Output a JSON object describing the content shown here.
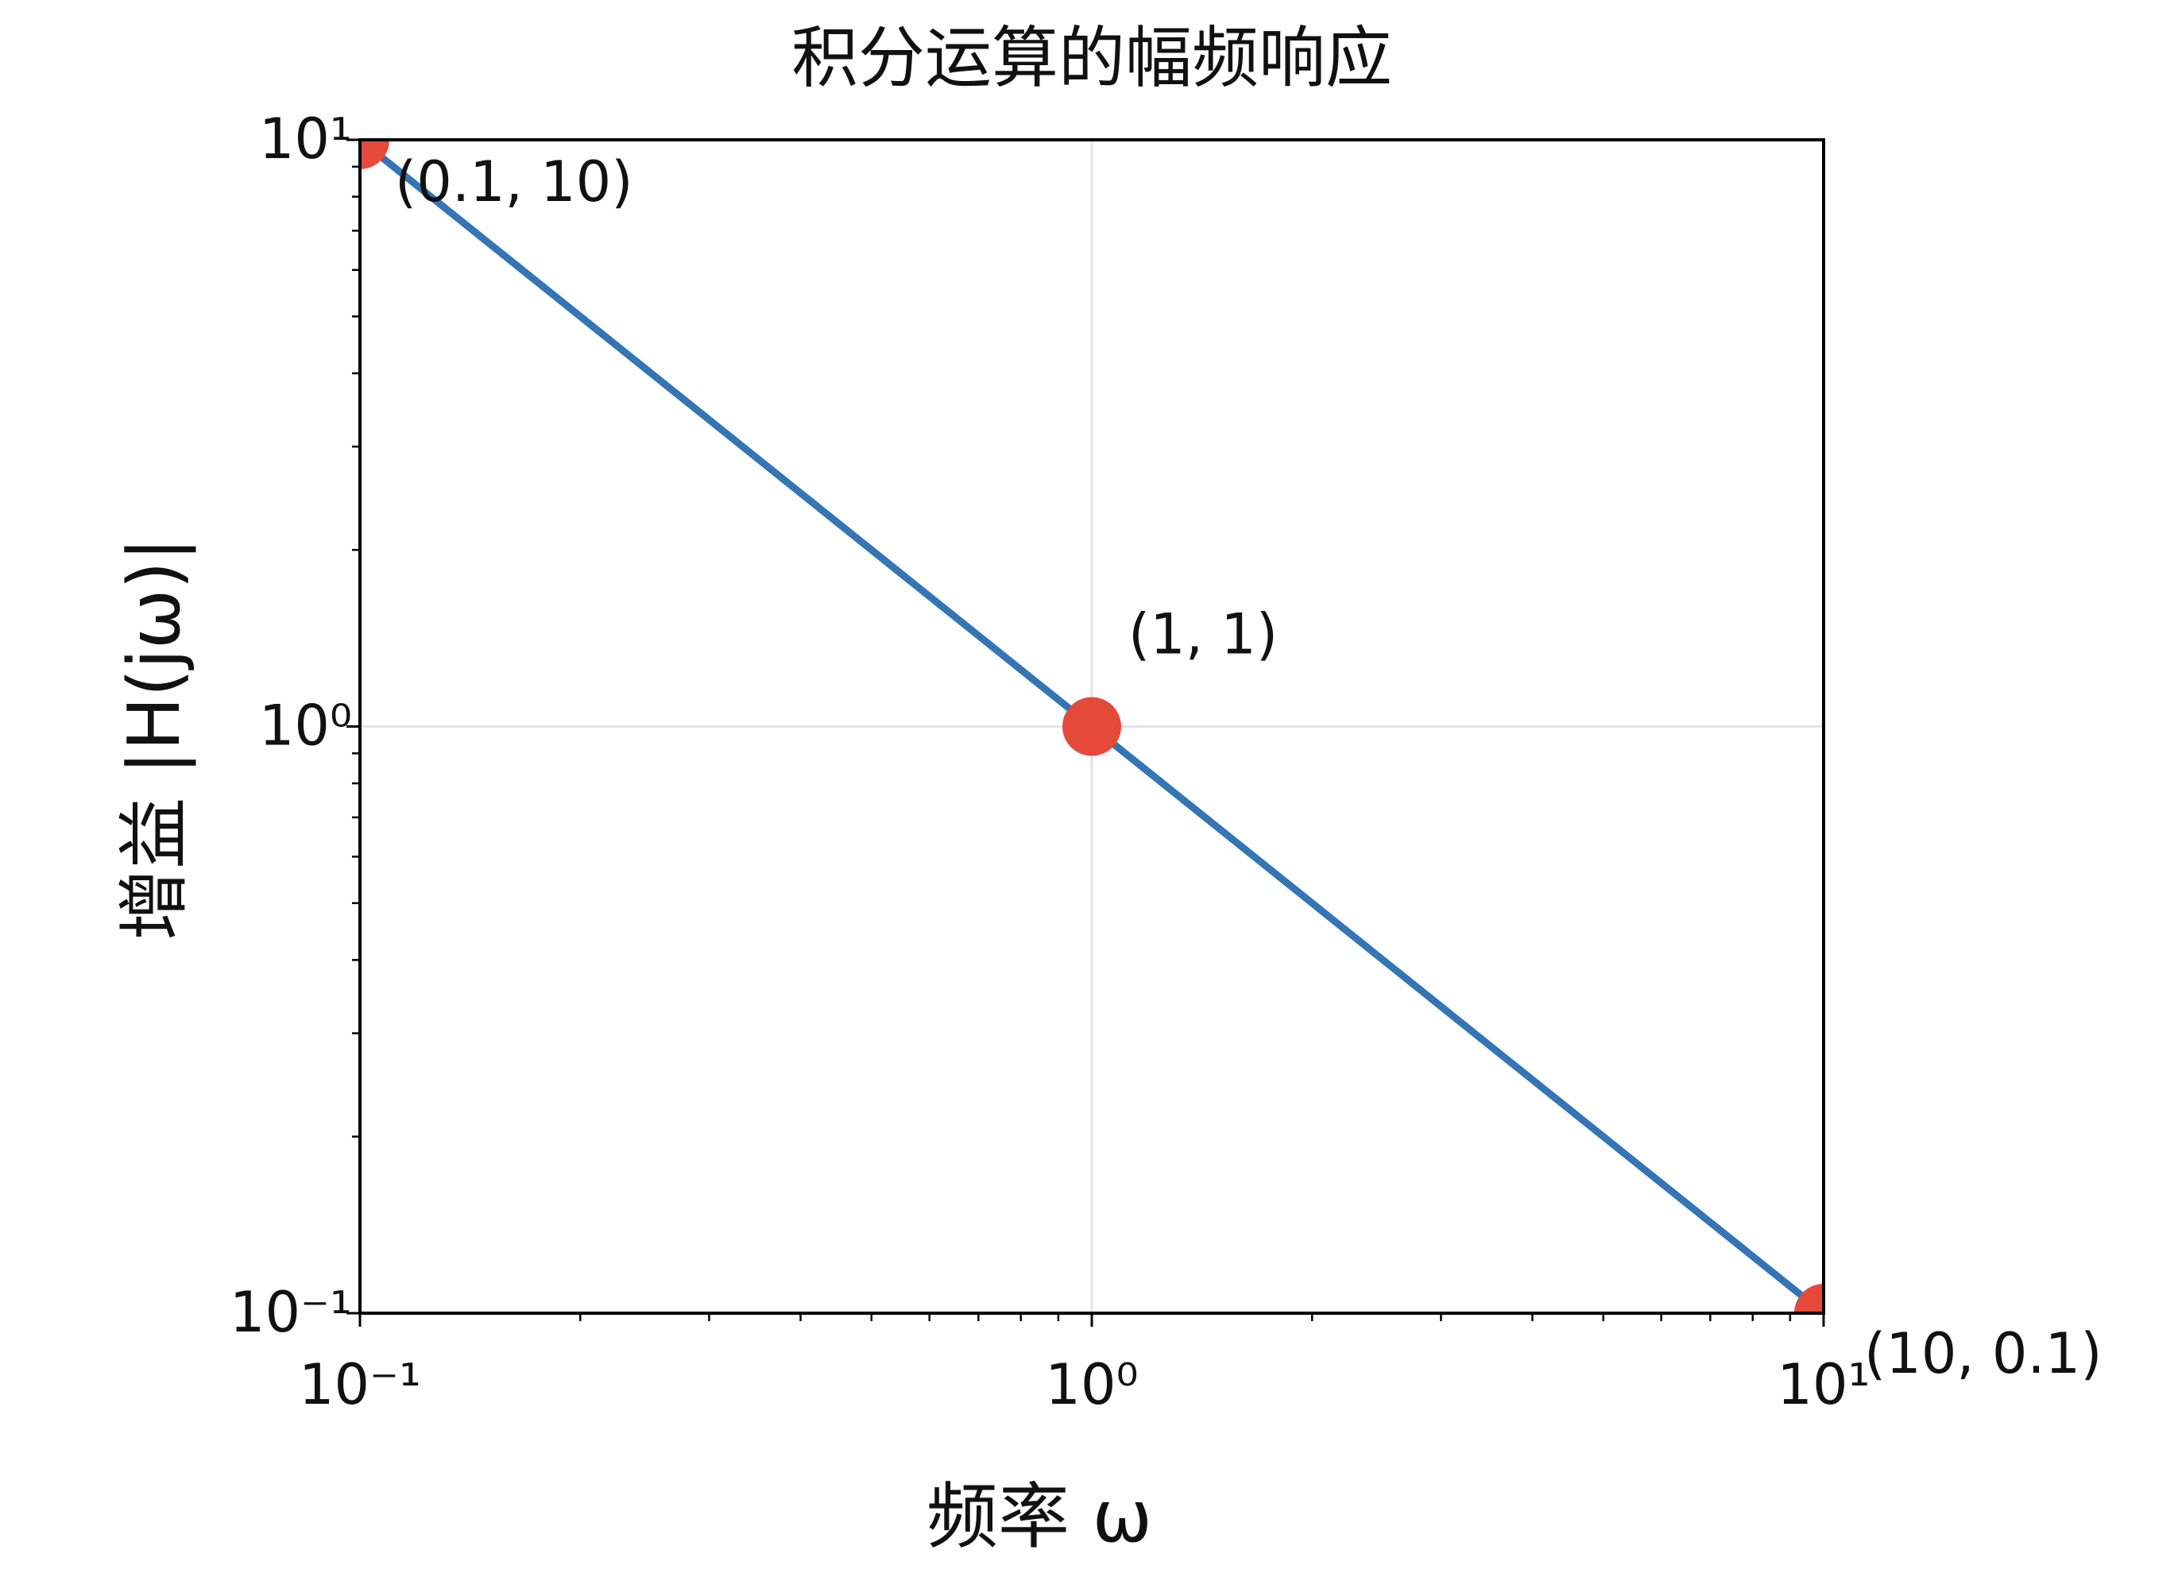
{
  "chart_data": {
    "type": "line",
    "title": "积分运算的幅频响应",
    "xlabel": "频率 ω",
    "ylabel": "增益 |H(jω)|",
    "xscale": "log",
    "yscale": "log",
    "xlim": [
      0.1,
      10
    ],
    "ylim": [
      0.1,
      10
    ],
    "xticks": [
      {
        "value": 0.1,
        "label": "10⁻¹"
      },
      {
        "value": 1,
        "label": "10⁰"
      },
      {
        "value": 10,
        "label": "10¹"
      }
    ],
    "yticks": [
      {
        "value": 0.1,
        "label": "10⁻¹"
      },
      {
        "value": 1,
        "label": "10⁰"
      },
      {
        "value": 10,
        "label": "10¹"
      }
    ],
    "xminorticks": [
      0.2,
      0.3,
      0.4,
      0.5,
      0.6,
      0.7,
      0.8,
      0.9,
      2,
      3,
      4,
      5,
      6,
      7,
      8,
      9
    ],
    "yminorticks": [
      0.2,
      0.3,
      0.4,
      0.5,
      0.6,
      0.7,
      0.8,
      0.9,
      2,
      3,
      4,
      5,
      6,
      7,
      8,
      9
    ],
    "grid": true,
    "x": [
      0.1,
      1,
      10
    ],
    "series": [
      {
        "color": "#3475b5",
        "values": [
          10,
          1,
          0.1
        ]
      }
    ],
    "points": {
      "color": "#e5493a",
      "x": [
        0.1,
        1,
        10
      ],
      "values": [
        10,
        1,
        0.1
      ]
    },
    "annotations": [
      {
        "text": "(0.1, 10)",
        "x": 0.1,
        "y": 10
      },
      {
        "text": "(1, 1)",
        "x": 1,
        "y": 1
      },
      {
        "text": "(10, 0.1)",
        "x": 10,
        "y": 0.1
      }
    ]
  }
}
